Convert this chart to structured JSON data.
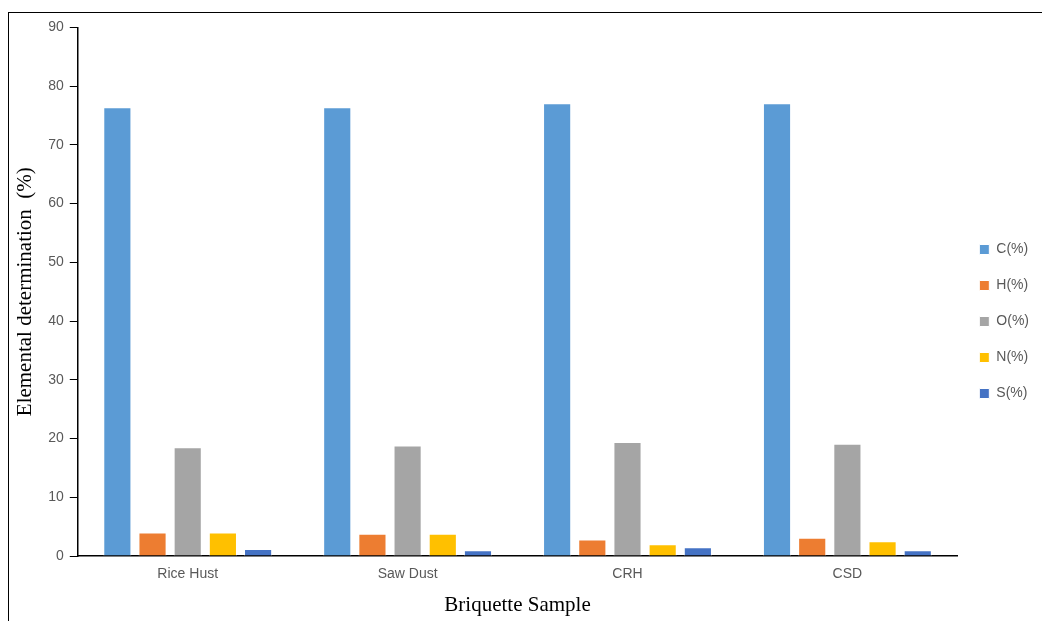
{
  "chart_data": {
    "type": "bar",
    "xlabel": "Briquette Sample",
    "ylabel": "Elemental determination  (%)",
    "categories": [
      "Rice Hust",
      "Saw Dust",
      "CRH",
      "CSD"
    ],
    "series": [
      {
        "name": "C(%)",
        "color": "#5b9bd5",
        "values": [
          76.4,
          76.4,
          77.1,
          77.1
        ]
      },
      {
        "name": "H(%)",
        "color": "#ed7d31",
        "values": [
          4.0,
          3.8,
          2.8,
          3.1
        ]
      },
      {
        "name": "O(%)",
        "color": "#a5a5a5",
        "values": [
          18.5,
          18.8,
          19.4,
          19.1
        ]
      },
      {
        "name": "N(%)",
        "color": "#ffc000",
        "values": [
          4.0,
          3.8,
          2.0,
          2.5
        ]
      },
      {
        "name": "S(%)",
        "color": "#4472c4",
        "values": [
          1.2,
          1.0,
          1.5,
          1.0
        ]
      }
    ],
    "ylim": [
      0,
      90
    ],
    "yticks": [
      0,
      10,
      20,
      30,
      40,
      50,
      60,
      70,
      80,
      90
    ],
    "grid": false,
    "legend": "right"
  }
}
